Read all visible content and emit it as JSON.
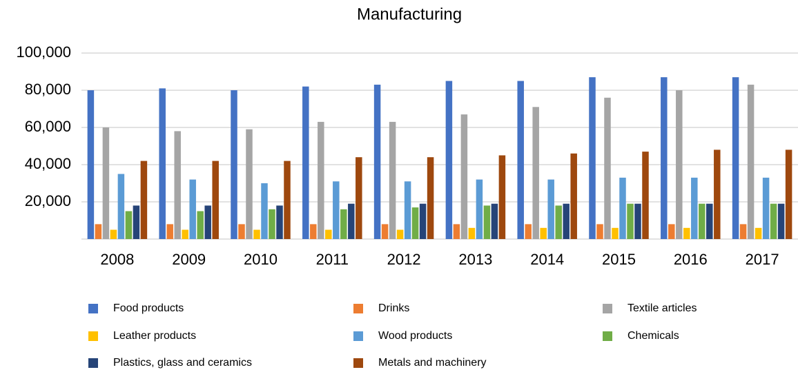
{
  "chart_data": {
    "type": "bar",
    "title": "Manufacturing",
    "categories": [
      "2008",
      "2009",
      "2010",
      "2011",
      "2012",
      "2013",
      "2014",
      "2015",
      "2016",
      "2017"
    ],
    "series": [
      {
        "name": "Food products",
        "color": "#4472c4",
        "values": [
          80000,
          81000,
          80000,
          82000,
          83000,
          85000,
          85000,
          87000,
          87000,
          87000
        ]
      },
      {
        "name": "Drinks",
        "color": "#ed7d31",
        "values": [
          8000,
          8000,
          8000,
          8000,
          8000,
          8000,
          8000,
          8000,
          8000,
          8000
        ]
      },
      {
        "name": "Textile articles",
        "color": "#a5a5a5",
        "values": [
          60000,
          58000,
          59000,
          63000,
          63000,
          67000,
          71000,
          76000,
          80000,
          83000
        ]
      },
      {
        "name": "Leather products",
        "color": "#ffc000",
        "values": [
          5000,
          5000,
          5000,
          5000,
          5000,
          6000,
          6000,
          6000,
          6000,
          6000
        ]
      },
      {
        "name": "Wood products",
        "color": "#5b9bd5",
        "values": [
          35000,
          32000,
          30000,
          31000,
          31000,
          32000,
          32000,
          33000,
          33000,
          33000
        ]
      },
      {
        "name": "Chemicals",
        "color": "#70ad47",
        "values": [
          15000,
          15000,
          16000,
          16000,
          17000,
          18000,
          18000,
          19000,
          19000,
          19000
        ]
      },
      {
        "name": "Plastics, glass and ceramics",
        "color": "#264478",
        "values": [
          18000,
          18000,
          18000,
          19000,
          19000,
          19000,
          19000,
          19000,
          19000,
          19000
        ]
      },
      {
        "name": "Metals and machinery",
        "color": "#9e480e",
        "values": [
          42000,
          42000,
          42000,
          44000,
          44000,
          45000,
          46000,
          47000,
          48000,
          48000
        ]
      }
    ],
    "ylim": [
      0,
      100000
    ],
    "yticks": [
      {
        "value": 20000,
        "label": "20,000"
      },
      {
        "value": 40000,
        "label": "40,000"
      },
      {
        "value": 60000,
        "label": "60,000"
      },
      {
        "value": 80000,
        "label": "80,000"
      },
      {
        "value": 100000,
        "label": "100,000"
      }
    ],
    "grid": true,
    "legend": "bottom"
  }
}
